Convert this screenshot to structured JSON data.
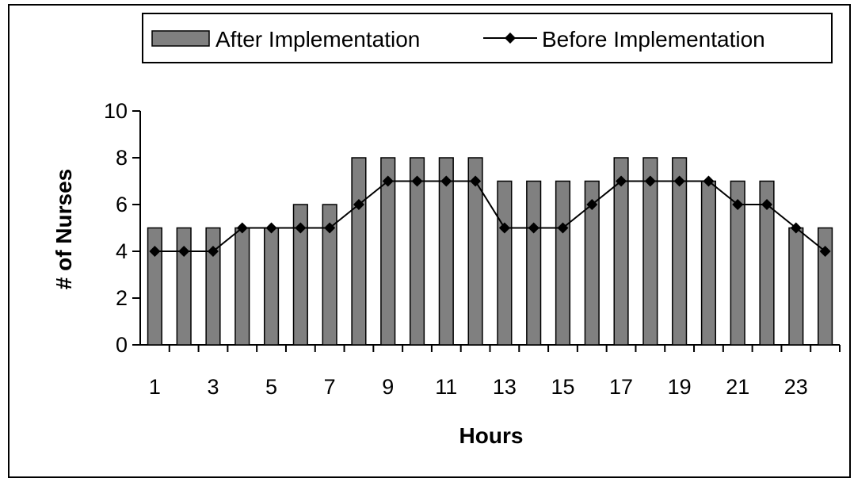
{
  "chart_data": {
    "type": "bar",
    "title": "",
    "xlabel": "Hours",
    "ylabel": "# of Nurses",
    "ylim": [
      0,
      10
    ],
    "yticks": [
      "0",
      "2",
      "4",
      "6",
      "8",
      "10"
    ],
    "x_tick_labels": [
      "1",
      "3",
      "5",
      "7",
      "9",
      "11",
      "13",
      "15",
      "17",
      "19",
      "21",
      "23"
    ],
    "categories": [
      "1",
      "2",
      "3",
      "4",
      "5",
      "6",
      "7",
      "8",
      "9",
      "10",
      "11",
      "12",
      "13",
      "14",
      "15",
      "16",
      "17",
      "18",
      "19",
      "20",
      "21",
      "22",
      "23",
      "24"
    ],
    "series": [
      {
        "name": "After Implementation",
        "type": "bar",
        "color": "#808080",
        "values": [
          5,
          5,
          5,
          5,
          5,
          6,
          6,
          8,
          8,
          8,
          8,
          8,
          7,
          7,
          7,
          7,
          8,
          8,
          8,
          7,
          7,
          7,
          5,
          5
        ]
      },
      {
        "name": "Before Implementation",
        "type": "line",
        "marker": "diamond",
        "color": "#000000",
        "values": [
          4,
          4,
          4,
          5,
          5,
          5,
          5,
          6,
          7,
          7,
          7,
          7,
          5,
          5,
          5,
          6,
          7,
          7,
          7,
          7,
          6,
          6,
          5,
          4
        ]
      }
    ],
    "legend": {
      "placement": "top"
    },
    "grid": false
  }
}
